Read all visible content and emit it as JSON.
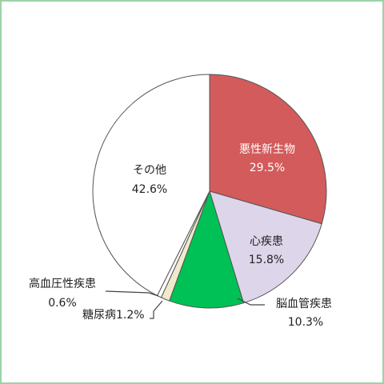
{
  "chart_data": {
    "type": "pie",
    "start_angle_deg": 0,
    "direction": "clockwise",
    "slices": [
      {
        "label": "悪性新生物",
        "value": 29.5,
        "value_text": "29.5%",
        "color": "#d35b5b",
        "label_color": "#ffffff"
      },
      {
        "label": "心疾患",
        "value": 15.8,
        "value_text": "15.8%",
        "color": "#ddd6ea",
        "label_color": "#222222"
      },
      {
        "label": "脳血管疾患",
        "value": 10.3,
        "value_text": "10.3%",
        "color": "#00c155",
        "label_color": "#222222"
      },
      {
        "label": "糖尿病",
        "value": 1.2,
        "value_text": "1.2%",
        "color": "#eeeacb",
        "label_color": "#222222"
      },
      {
        "label": "高血圧性疾患",
        "value": 0.6,
        "value_text": "0.6%",
        "color": "#ffffff",
        "label_color": "#222222"
      },
      {
        "label": "その他",
        "value": 42.6,
        "value_text": "42.6%",
        "color": "#ffffff",
        "label_color": "#222222"
      }
    ],
    "stroke_color": "#555555",
    "leader_color": "#444444",
    "border_color": "#9bd3a8"
  }
}
